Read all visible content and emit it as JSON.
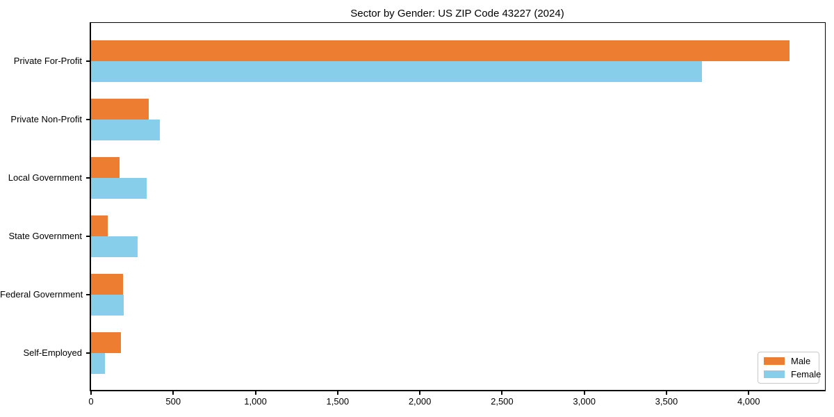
{
  "chart_data": {
    "type": "bar",
    "orientation": "horizontal",
    "title": "Sector by Gender: US ZIP Code 43227 (2024)",
    "categories": [
      "Private For-Profit",
      "Private Non-Profit",
      "Local Government",
      "State Government",
      "Federal Government",
      "Self-Employed"
    ],
    "series": [
      {
        "name": "Male",
        "color": "#ED7D31",
        "values": [
          4250,
          350,
          175,
          100,
          195,
          180
        ]
      },
      {
        "name": "Female",
        "color": "#87CEEB",
        "values": [
          3715,
          420,
          340,
          285,
          200,
          85
        ]
      }
    ],
    "xlim": [
      0,
      4464
    ],
    "x_ticks": [
      0,
      500,
      1000,
      1500,
      2000,
      2500,
      3000,
      3500,
      4000
    ],
    "x_tick_labels": [
      "0",
      "500",
      "1,000",
      "1,500",
      "2,000",
      "2,500",
      "3,000",
      "3,500",
      "4,000"
    ],
    "xlabel": "",
    "ylabel": "",
    "grid": false,
    "legend": {
      "position": "lower right"
    }
  }
}
